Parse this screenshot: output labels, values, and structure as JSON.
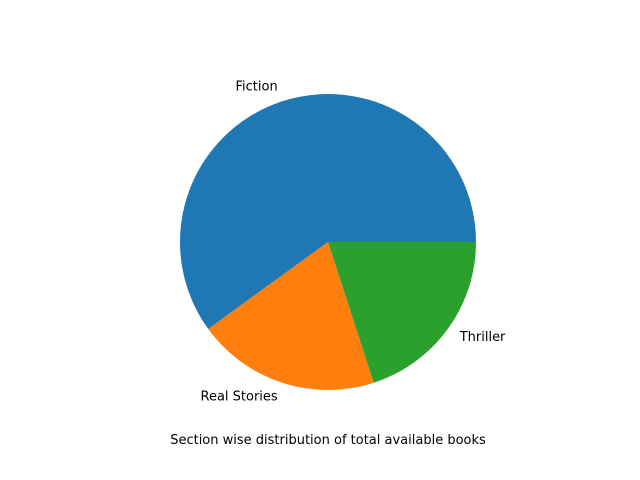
{
  "chart_data": {
    "type": "pie",
    "categories": [
      "Fiction",
      "Real Stories",
      "Thriller"
    ],
    "values": [
      60,
      20,
      20
    ],
    "start_angle_deg": 0,
    "direction": "counterclockwise",
    "colors": [
      "#1f77b4",
      "#ff7f0e",
      "#2ca02c"
    ],
    "xlabel": "Section wise distribution of total available books",
    "title": ""
  }
}
